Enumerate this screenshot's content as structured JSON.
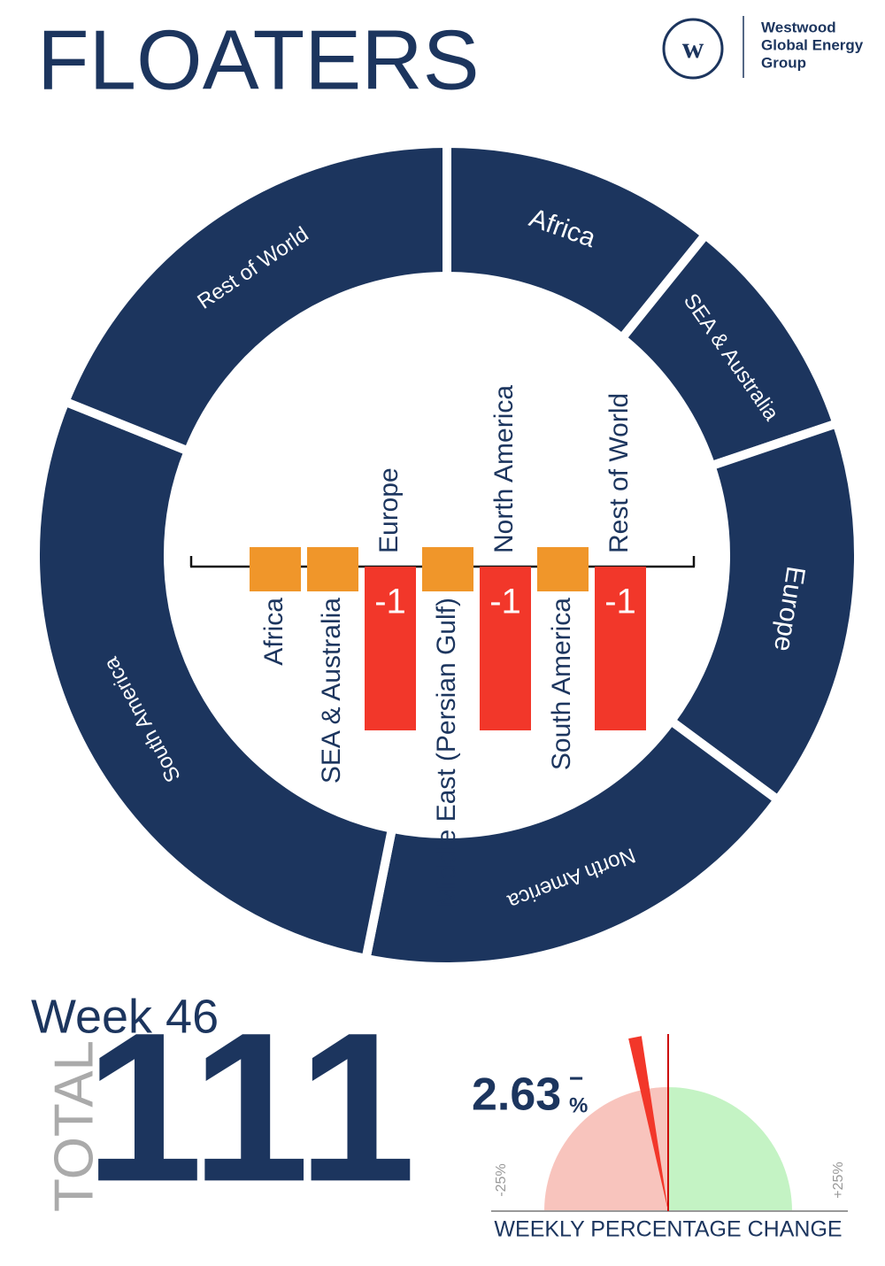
{
  "header": {
    "title": "FLOATERS",
    "logo_lines": [
      "Westwood",
      "Global Energy",
      "Group"
    ]
  },
  "chart_data": [
    {
      "type": "donut",
      "categories": [
        "Africa",
        "SEA & Australia",
        "Europe",
        "North America",
        "South America",
        "Rest of World"
      ],
      "values": [
        12,
        10,
        17,
        20,
        31,
        21
      ],
      "color": "#1c355e"
    },
    {
      "type": "bar",
      "categories": [
        "Africa",
        "SEA & Australia",
        "Europe",
        "Middle East (Persian Gulf)",
        "North America",
        "South America",
        "Rest of World"
      ],
      "values": [
        0,
        0,
        -1,
        0,
        -1,
        0,
        -1
      ],
      "colors": {
        "negative": "#f2372a",
        "zero": "#f0962a"
      }
    },
    {
      "type": "gauge",
      "value": -2.63,
      "value_label": "2.63",
      "sign": "−",
      "unit": "%",
      "xlim": [
        -25,
        25
      ],
      "xticks": [
        {
          "value": -25,
          "label": "-25%"
        },
        {
          "value": 25,
          "label": "+25%"
        }
      ],
      "colors": {
        "negative": "#f8c4bd",
        "positive": "#c4f3c4",
        "needle": "#f2372a"
      },
      "label": "WEEKLY PERCENTAGE CHANGE"
    }
  ],
  "summary": {
    "week": "Week 46",
    "total_label": "TOTAL",
    "total": 111
  }
}
